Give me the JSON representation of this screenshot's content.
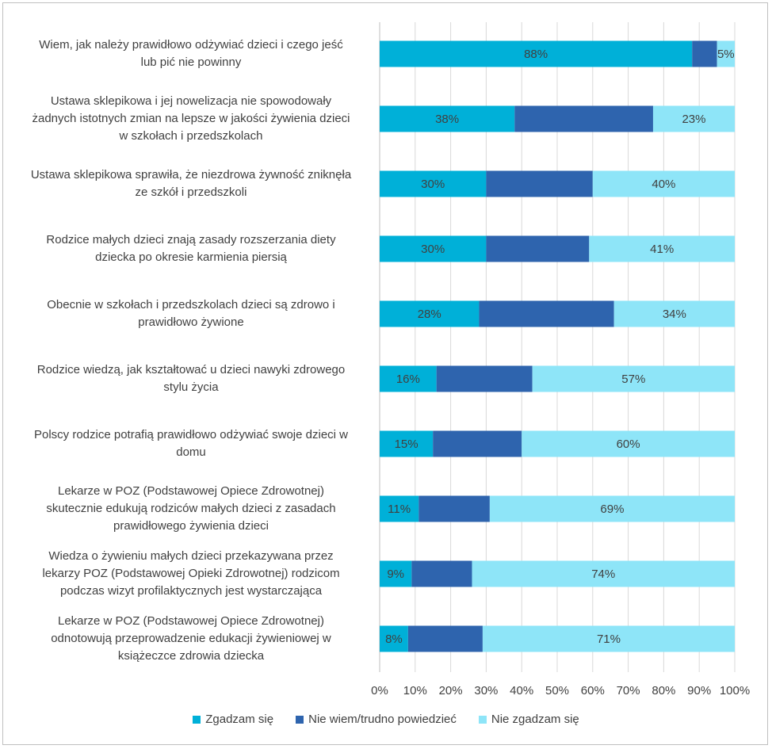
{
  "chart_data": {
    "type": "bar",
    "orientation": "horizontal",
    "stacked": true,
    "categories": [
      "Wiem, jak należy prawidłowo odżywiać dzieci i czego jeść lub pić nie powinny",
      "Ustawa sklepikowa i jej nowelizacja nie spowodowały żadnych istotnych zmian na lepsze w jakości żywienia dzieci w szkołach i przedszkolach",
      "Ustawa sklepikowa sprawiła, że niezdrowa żywność zniknęła ze szkół i przedszkoli",
      "Rodzice małych dzieci znają zasady rozszerzania diety dziecka po okresie karmienia piersią",
      "Obecnie w szkołach i przedszkolach dzieci są zdrowo i prawidłowo żywione",
      "Rodzice wiedzą, jak kształtować u dzieci nawyki zdrowego stylu życia",
      "Polscy rodzice potrafią prawidłowo odżywiać swoje dzieci w domu",
      "Lekarze w POZ (Podstawowej Opiece Zdrowotnej) skutecznie edukują rodziców małych dzieci z zasadach prawidłowego żywienia dzieci",
      "Wiedza o żywieniu małych dzieci przekazywana przez lekarzy POZ (Podstawowej Opieki Zdrowotnej) rodzicom podczas  wizyt profilaktycznych jest wystarczająca",
      "Lekarze w POZ (Podstawowej Opiece Zdrowotnej) odnotowują przeprowadzenie edukacji żywieniowej w książeczce zdrowia dziecka"
    ],
    "category_lines": [
      [
        "Wiem, jak należy prawidłowo odżywiać dzieci i czego jeść",
        "lub pić nie powinny"
      ],
      [
        "Ustawa sklepikowa i jej nowelizacja nie spowodowały",
        "żadnych istotnych zmian na lepsze w jakości żywienia dzieci",
        "w szkołach i przedszkolach"
      ],
      [
        "Ustawa sklepikowa sprawiła, że niezdrowa żywność zniknęła",
        "ze szkół i przedszkoli"
      ],
      [
        "Rodzice małych dzieci znają zasady rozszerzania diety",
        "dziecka po okresie karmienia piersią"
      ],
      [
        "Obecnie w szkołach i przedszkolach dzieci są zdrowo i",
        "prawidłowo żywione"
      ],
      [
        "Rodzice wiedzą, jak kształtować u dzieci nawyki zdrowego",
        "stylu życia"
      ],
      [
        "Polscy rodzice potrafią prawidłowo odżywiać swoje dzieci w",
        "domu"
      ],
      [
        "Lekarze w POZ (Podstawowej Opiece Zdrowotnej)",
        "skutecznie edukują rodziców małych dzieci z zasadach",
        "prawidłowego żywienia dzieci"
      ],
      [
        "Wiedza o żywieniu małych dzieci przekazywana przez",
        "lekarzy POZ (Podstawowej Opieki Zdrowotnej) rodzicom",
        "podczas  wizyt profilaktycznych jest wystarczająca"
      ],
      [
        "Lekarze w POZ (Podstawowej Opiece Zdrowotnej)",
        "odnotowują przeprowadzenie edukacji żywieniowej w",
        "książeczce zdrowia dziecka"
      ]
    ],
    "series": [
      {
        "name": "Zgadzam się",
        "color": "#00B0D8",
        "values": [
          88,
          38,
          30,
          30,
          28,
          16,
          15,
          11,
          9,
          8
        ],
        "labels": [
          "88%",
          "38%",
          "30%",
          "30%",
          "28%",
          "16%",
          "15%",
          "11%",
          "9%",
          "8%"
        ]
      },
      {
        "name": "Nie wiem/trudno powiedzieć",
        "color": "#2E64AE",
        "values": [
          7,
          39,
          30,
          29,
          38,
          27,
          25,
          20,
          17,
          21
        ],
        "labels": [
          "",
          "",
          "",
          "",
          "",
          "",
          "",
          "",
          "",
          ""
        ]
      },
      {
        "name": "Nie zgadzam się",
        "color": "#8EE5F8",
        "values": [
          5,
          23,
          40,
          41,
          34,
          57,
          60,
          69,
          74,
          71
        ],
        "labels": [
          "5%",
          "23%",
          "40%",
          "41%",
          "34%",
          "57%",
          "60%",
          "69%",
          "74%",
          "71%"
        ]
      }
    ],
    "xlim": [
      0,
      100
    ],
    "x_ticks": [
      "0%",
      "10%",
      "20%",
      "30%",
      "40%",
      "50%",
      "60%",
      "70%",
      "80%",
      "90%",
      "100%"
    ],
    "grid": true,
    "legend_position": "bottom"
  }
}
